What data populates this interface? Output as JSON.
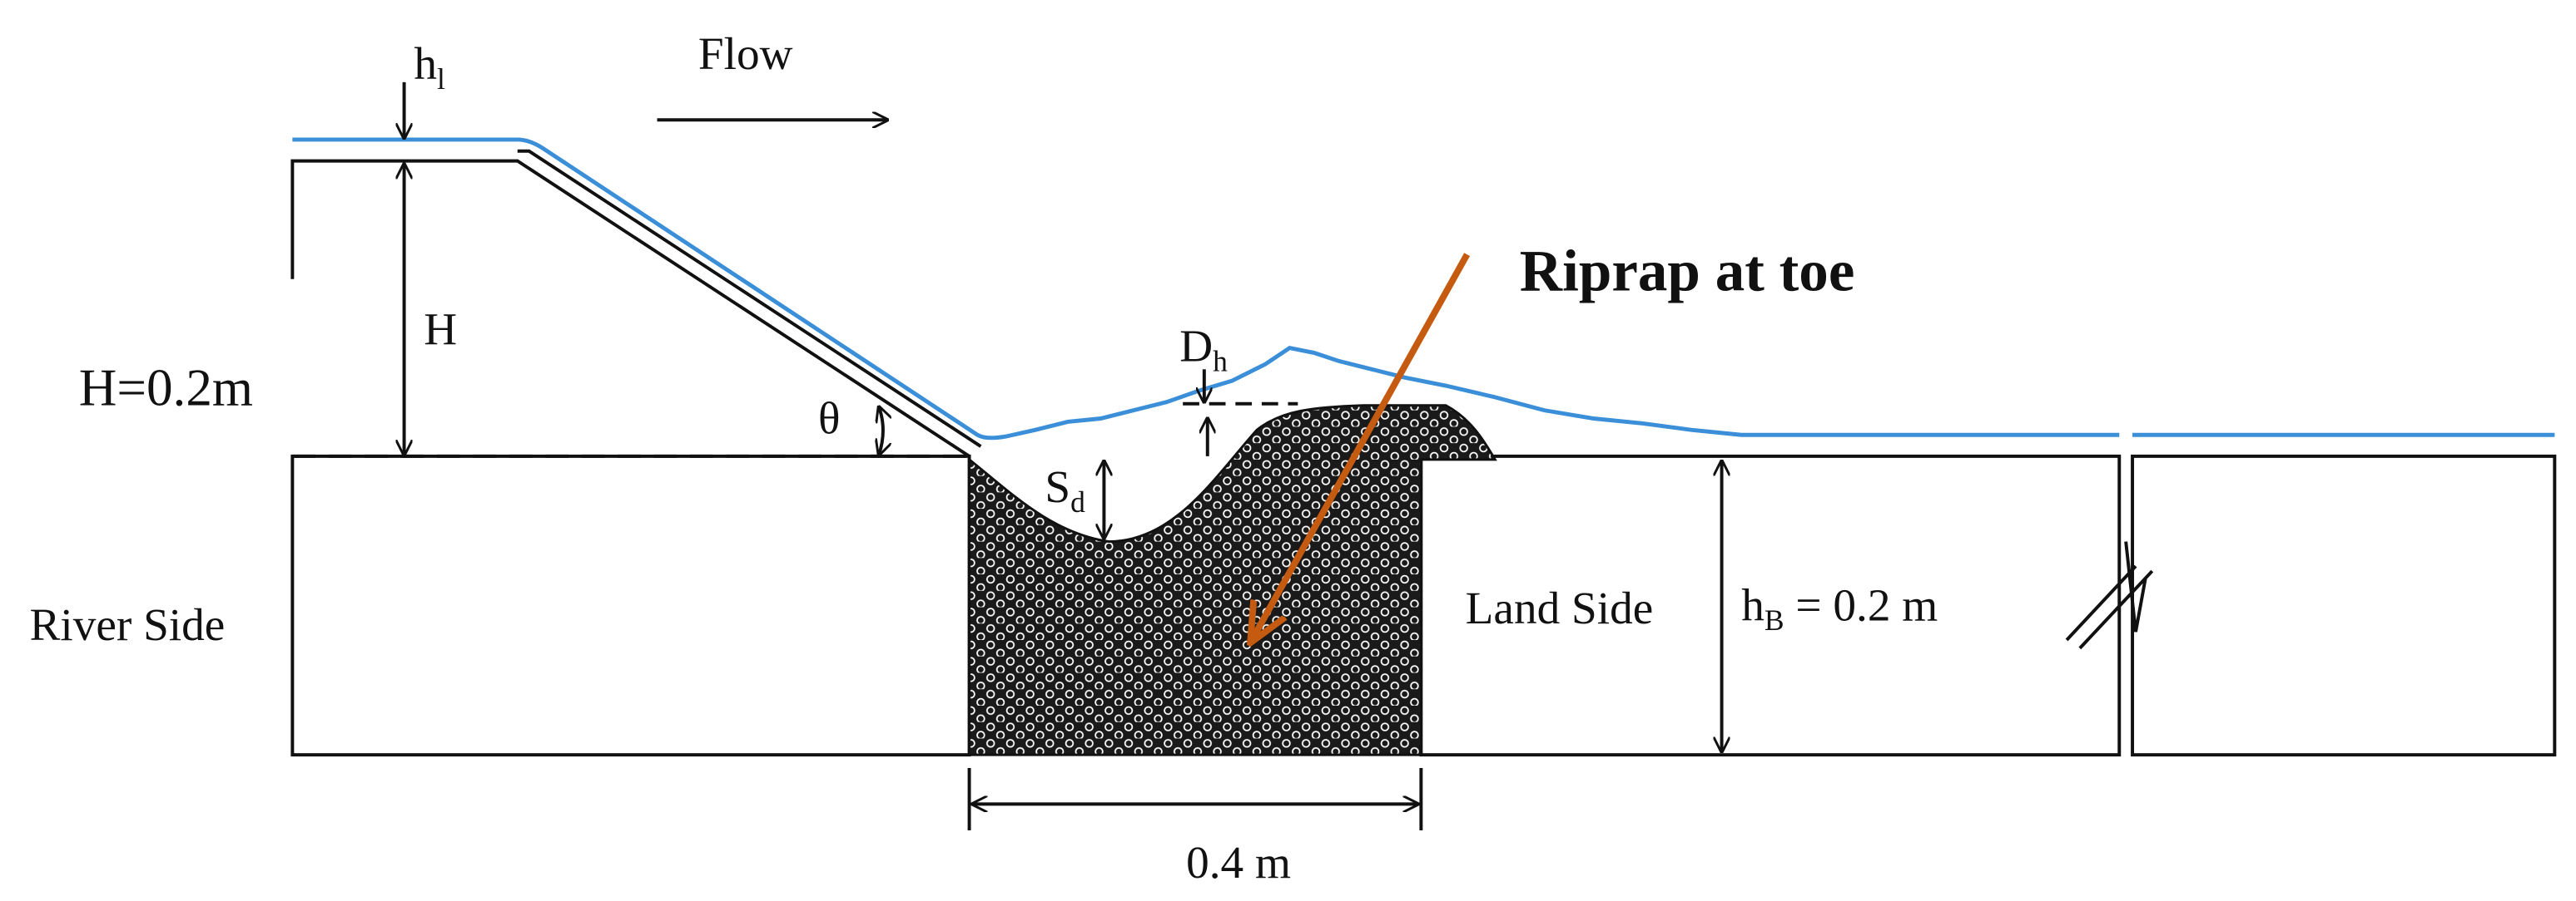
{
  "labels": {
    "hl": {
      "base": "h",
      "sub": "l"
    },
    "flow": "Flow",
    "riprap": "Riprap at toe",
    "h_axis": "H",
    "h_value": "H=0.2m",
    "theta": "θ",
    "dh": {
      "base": "D",
      "sub": "h"
    },
    "sd": {
      "base": "S",
      "sub": "d"
    },
    "river_side": "River Side",
    "land_side": "Land Side",
    "hb": {
      "base": "h",
      "sub": "B",
      "rest": " = 0.2 m"
    },
    "width": "0.4 m"
  }
}
